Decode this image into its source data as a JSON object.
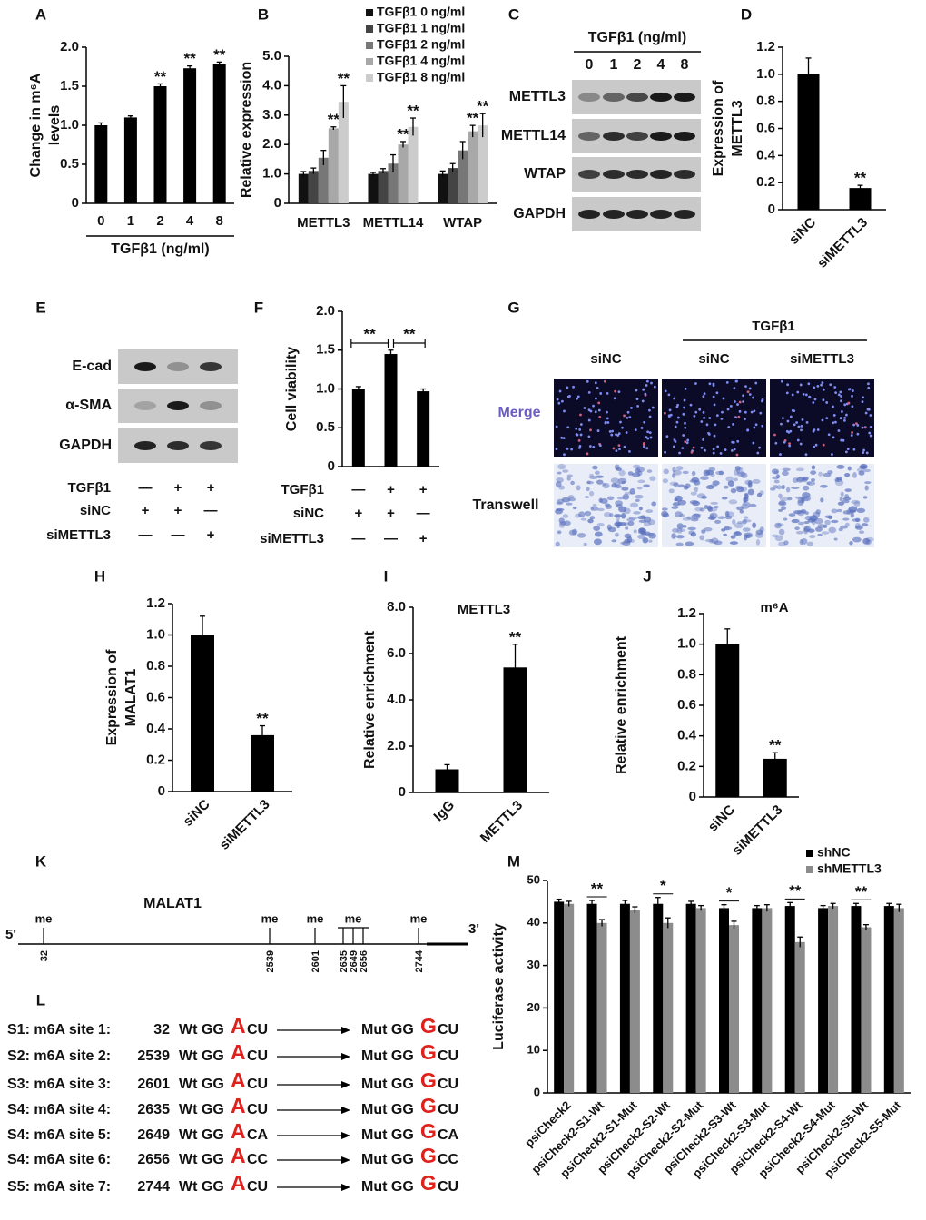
{
  "chart_data": [
    {
      "panel": "A",
      "type": "bar",
      "ylabel": [
        "Change in m⁶A",
        "levels"
      ],
      "xlabel": "TGFβ1 (ng/ml)",
      "categories": [
        "0",
        "1",
        "2",
        "4",
        "8"
      ],
      "values": [
        1.0,
        1.1,
        1.5,
        1.73,
        1.78
      ],
      "errors": [
        0.03,
        0.02,
        0.03,
        0.03,
        0.03
      ],
      "sig": [
        null,
        null,
        "**",
        "**",
        "**"
      ],
      "color": "#000000",
      "ylim": [
        0,
        2
      ],
      "yticks": [
        0,
        0.5,
        {
          "value": 1,
          "label": "1.0"
        },
        1.5,
        {
          "value": 2,
          "label": "2.0"
        }
      ]
    },
    {
      "panel": "B",
      "type": "bar",
      "ylabel": "Relative expression",
      "categories": [
        "METTL3",
        "METTL14",
        "WTAP"
      ],
      "series": [
        {
          "name": "TGFβ1 0 ng/ml",
          "color": "#111111",
          "values": [
            1.0,
            1.0,
            1.0
          ],
          "errors": [
            0.08,
            0.05,
            0.1
          ],
          "sig": [
            null,
            null,
            null
          ]
        },
        {
          "name": "TGFβ1 1 ng/ml",
          "color": "#444444",
          "values": [
            1.1,
            1.1,
            1.2
          ],
          "errors": [
            0.1,
            0.08,
            0.15
          ],
          "sig": [
            null,
            null,
            null
          ]
        },
        {
          "name": "TGFβ1 2 ng/ml",
          "color": "#777777",
          "values": [
            1.55,
            1.35,
            1.8
          ],
          "errors": [
            0.25,
            0.3,
            0.3
          ],
          "sig": [
            null,
            null,
            null
          ]
        },
        {
          "name": "TGFβ1 4 ng/ml",
          "color": "#a8a8a8",
          "values": [
            2.55,
            2.0,
            2.45
          ],
          "errors": [
            0.05,
            0.1,
            0.2
          ],
          "sig": [
            "**",
            "**",
            "**"
          ]
        },
        {
          "name": "TGFβ1 8 ng/ml",
          "color": "#cccccc",
          "values": [
            3.45,
            2.6,
            2.65
          ],
          "errors": [
            0.55,
            0.3,
            0.4
          ],
          "sig": [
            "**",
            "**",
            "**"
          ]
        }
      ],
      "ylim": [
        0,
        5
      ],
      "yticks": [
        0,
        {
          "value": 1,
          "label": "1.0"
        },
        {
          "value": 2,
          "label": "2.0"
        },
        {
          "value": 3,
          "label": "3.0"
        },
        {
          "value": 4,
          "label": "4.0"
        },
        {
          "value": 5,
          "label": "5.0"
        }
      ]
    },
    {
      "panel": "D",
      "type": "bar",
      "ylabel": [
        "Expression  of",
        "METTL3"
      ],
      "categories": [
        "siNC",
        "siMETTL3"
      ],
      "values": [
        1.0,
        0.16
      ],
      "errors": [
        0.12,
        0.02
      ],
      "sig": [
        null,
        "**"
      ],
      "color": "#000000",
      "ylim": [
        0,
        1.2
      ],
      "yticks": [
        0,
        0.2,
        0.4,
        0.6,
        0.8,
        {
          "value": 1,
          "label": "1.0"
        },
        1.2
      ]
    },
    {
      "panel": "F",
      "type": "bar",
      "ylabel": "Cell viability",
      "values": [
        1.0,
        1.45,
        0.97
      ],
      "errors": [
        0.03,
        0.05,
        0.03
      ],
      "brackets": [
        "**",
        "**"
      ],
      "color": "#000000",
      "conditions": [
        {
          "label": "TGFβ1",
          "signs": [
            "—",
            "+",
            "+"
          ]
        },
        {
          "label": "siNC",
          "signs": [
            "+",
            "+",
            "—"
          ]
        },
        {
          "label": "siMETTL3",
          "signs": [
            "—",
            "—",
            "+"
          ]
        }
      ],
      "ylim": [
        0,
        2
      ],
      "yticks": [
        0,
        0.5,
        {
          "value": 1,
          "label": "1.0"
        },
        1.5,
        {
          "value": 2,
          "label": "2.0"
        }
      ]
    },
    {
      "panel": "H",
      "type": "bar",
      "ylabel": [
        "Expression of",
        "MALAT1"
      ],
      "categories": [
        "siNC",
        "siMETTL3"
      ],
      "values": [
        1.0,
        0.36
      ],
      "errors": [
        0.12,
        0.06
      ],
      "sig": [
        null,
        "**"
      ],
      "color": "#000000",
      "ylim": [
        0,
        1.2
      ],
      "yticks": [
        0,
        0.2,
        0.4,
        0.6,
        0.8,
        {
          "value": 1,
          "label": "1.0"
        },
        1.2
      ]
    },
    {
      "panel": "I",
      "type": "bar",
      "title": "METTL3",
      "ylabel": "Relative enrichment",
      "categories": [
        "IgG",
        "METTL3"
      ],
      "values": [
        1.0,
        5.4
      ],
      "errors": [
        0.2,
        1.0
      ],
      "sig": [
        null,
        "**"
      ],
      "color": "#000000",
      "ylim": [
        0,
        8
      ],
      "yticks": [
        0,
        {
          "value": 2,
          "label": "2.0"
        },
        {
          "value": 4,
          "label": "4.0"
        },
        {
          "value": 6,
          "label": "6.0"
        },
        {
          "value": 8,
          "label": "8.0"
        }
      ]
    },
    {
      "panel": "J",
      "type": "bar",
      "title": "m⁶A",
      "ylabel": "Relative enrichment",
      "categories": [
        "siNC",
        "siMETTL3"
      ],
      "values": [
        1.0,
        0.25
      ],
      "errors": [
        0.1,
        0.04
      ],
      "sig": [
        null,
        "**"
      ],
      "color": "#000000",
      "ylim": [
        0,
        1.2
      ],
      "yticks": [
        0,
        0.2,
        0.4,
        0.6,
        0.8,
        {
          "value": 1,
          "label": "1.0"
        },
        1.2
      ]
    },
    {
      "panel": "M",
      "type": "bar",
      "ylabel": "Luciferase activity",
      "categories": [
        "psiCheck2",
        "psiCheck2-S1-Wt",
        "psiCheck2-S1-Mut",
        "psiCheck2-S2-Wt",
        "psiCheck2-S2-Mut",
        "psiCheck2-S3-Wt",
        "psiCheck2-S3-Mut",
        "psiCheck2-S4-Wt",
        "psiCheck2-S4-Mut",
        "psiCheck2-S5-Wt",
        "psiCheck2-S5-Mut"
      ],
      "series": [
        {
          "name": "shNC",
          "color": "#000000",
          "values": [
            45,
            44.5,
            44.5,
            44.5,
            44.5,
            43.5,
            43.5,
            44,
            43.5,
            44,
            44
          ],
          "errors": [
            0.6,
            0.8,
            0.8,
            1.5,
            0.6,
            0.8,
            0.6,
            0.8,
            0.6,
            0.6,
            0.6
          ]
        },
        {
          "name": "shMETTL3",
          "color": "#8c8c8c",
          "values": [
            44.5,
            40,
            43,
            40,
            43.5,
            39.5,
            43.5,
            35.5,
            44,
            39,
            43.5
          ],
          "errors": [
            0.6,
            0.8,
            0.8,
            1.2,
            0.6,
            0.9,
            0.8,
            1.2,
            0.6,
            0.6,
            0.9
          ]
        }
      ],
      "sig": [
        null,
        "**",
        null,
        "*",
        null,
        "*",
        null,
        "**",
        null,
        "**",
        null
      ],
      "legend": "top-right",
      "ylim": [
        0,
        50
      ],
      "yticks": [
        0,
        10,
        20,
        30,
        40,
        50
      ]
    }
  ],
  "blots": [
    {
      "panel": "C",
      "title": "TGFβ1 (ng/ml)",
      "lanes": [
        "0",
        "1",
        "2",
        "4",
        "8"
      ],
      "rows": [
        "METTL3",
        "METTL14",
        "WTAP",
        "GAPDH"
      ]
    },
    {
      "panel": "E",
      "rows": [
        "E-cad",
        "α-SMA",
        "GAPDH"
      ],
      "conditions": [
        {
          "label": "TGFβ1",
          "signs": [
            "—",
            "+",
            "+"
          ]
        },
        {
          "label": "siNC",
          "signs": [
            "+",
            "+",
            "—"
          ]
        },
        {
          "label": "siMETTL3",
          "signs": [
            "—",
            "—",
            "+"
          ]
        }
      ]
    }
  ],
  "images": {
    "panel": "G",
    "header": "TGFβ1",
    "columns": [
      "siNC",
      "siNC",
      "siMETTL3"
    ],
    "rows": [
      "Merge",
      "Transwell"
    ]
  },
  "diagram": {
    "panel": "K",
    "title": "MALAT1",
    "five": "5'",
    "three": "3'",
    "groups": [
      {
        "label": "me",
        "sites": [
          32
        ]
      },
      {
        "label": "me",
        "sites": [
          2539
        ]
      },
      {
        "label": "me",
        "sites": [
          2601
        ]
      },
      {
        "label": "me",
        "sites": [
          2635,
          2649,
          2656
        ]
      },
      {
        "label": "me",
        "sites": [
          2744
        ]
      }
    ]
  },
  "sequences": {
    "panel": "L",
    "rows": [
      {
        "site": "S1: m6A site 1:",
        "pos": 32,
        "wt_pre": "Wt GG",
        "wt_base": "A",
        "wt_post": "CU",
        "mut_pre": "Mut GG",
        "mut_base": "G",
        "mut_post": "CU"
      },
      {
        "site": "S2: m6A site 2:",
        "pos": 2539,
        "wt_pre": "Wt GG",
        "wt_base": "A",
        "wt_post": "CU",
        "mut_pre": "Mut GG",
        "mut_base": "G",
        "mut_post": "CU"
      },
      {
        "site": "S3: m6A site 3:",
        "pos": 2601,
        "wt_pre": "Wt GG",
        "wt_base": "A",
        "wt_post": "CU",
        "mut_pre": "Mut GG",
        "mut_base": "G",
        "mut_post": "CU"
      },
      {
        "site": "S4: m6A site 4:",
        "pos": 2635,
        "wt_pre": "Wt GG",
        "wt_base": "A",
        "wt_post": "CU",
        "mut_pre": "Mut GG",
        "mut_base": "G",
        "mut_post": "CU"
      },
      {
        "site": "S4: m6A site 5:",
        "pos": 2649,
        "wt_pre": "Wt GG",
        "wt_base": "A",
        "wt_post": "CA",
        "mut_pre": "Mut GG",
        "mut_base": "G",
        "mut_post": "CA"
      },
      {
        "site": "S4: m6A site 6:",
        "pos": 2656,
        "wt_pre": "Wt GG",
        "wt_base": "A",
        "wt_post": "CC",
        "mut_pre": "Mut GG",
        "mut_base": "G",
        "mut_post": "CC"
      },
      {
        "site": "S5: m6A site 7:",
        "pos": 2744,
        "wt_pre": "Wt GG",
        "wt_base": "A",
        "wt_post": "CU",
        "mut_pre": "Mut GG",
        "mut_base": "G",
        "mut_post": "CU"
      }
    ]
  }
}
